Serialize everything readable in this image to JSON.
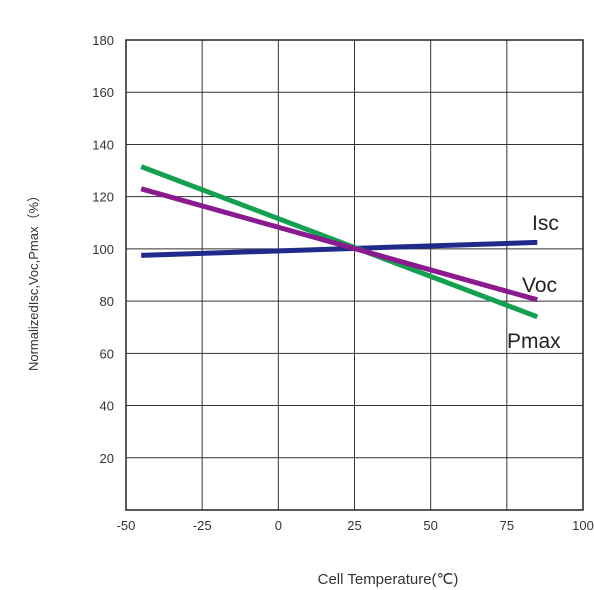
{
  "chart_data": {
    "type": "line",
    "title": "",
    "xlabel": "Cell Temperature(℃)",
    "ylabel": "NormalizedIsc,Voc,Pmax（%）",
    "xlim": [
      -50,
      100
    ],
    "ylim": [
      0,
      180
    ],
    "x_ticks": [
      "-50",
      "-25",
      "0",
      "25",
      "50",
      "75",
      "100"
    ],
    "y_ticks": [
      "20",
      "40",
      "60",
      "80",
      "100",
      "120",
      "140",
      "160",
      "180"
    ],
    "grid": true,
    "series": [
      {
        "name": "Isc",
        "color": "#1f2a8a",
        "x": [
          -45,
          85
        ],
        "y": [
          97.5,
          102.5
        ]
      },
      {
        "name": "Voc",
        "color": "#8b1a8f",
        "x": [
          -45,
          85
        ],
        "y": [
          123,
          80.5
        ]
      },
      {
        "name": "Pmax",
        "color": "#14a050",
        "x": [
          -45,
          85
        ],
        "y": [
          131.5,
          74
        ]
      }
    ]
  }
}
